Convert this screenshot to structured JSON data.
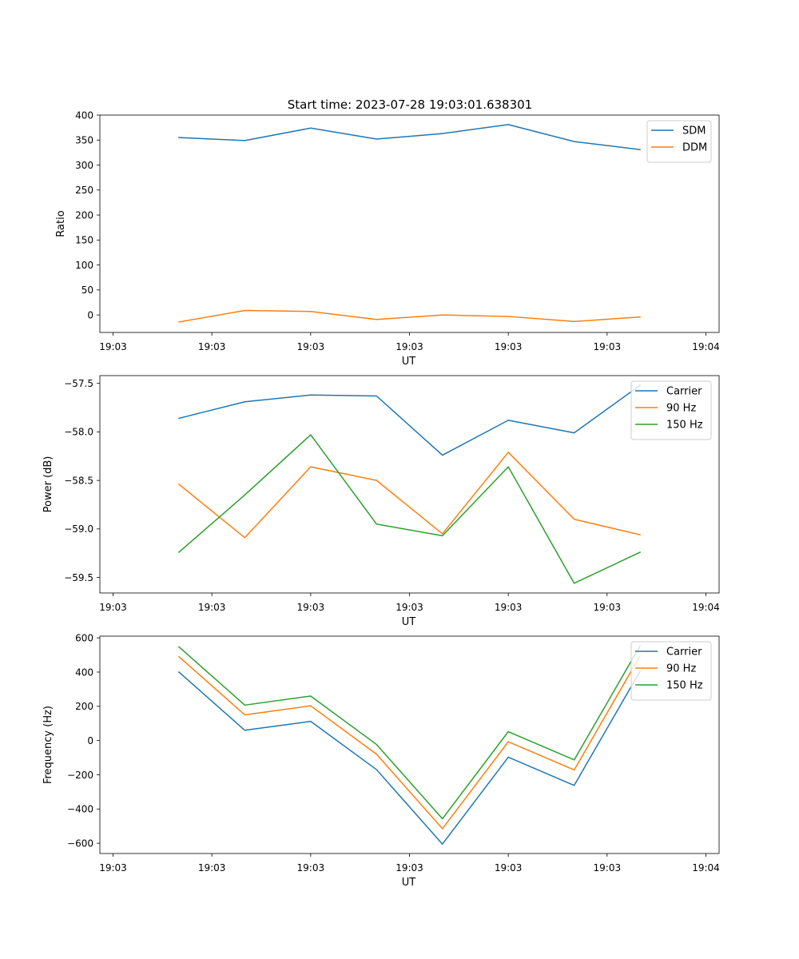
{
  "figure": {
    "title": "Start time: 2023-07-28 19:03:01.638301"
  },
  "colors": {
    "blue": "#1f77b4",
    "orange": "#ff7f0e",
    "green": "#2ca02c"
  },
  "chart_data": [
    {
      "type": "line",
      "title": "Start time: 2023-07-28 19:03:01.638301",
      "xlabel": "UT",
      "ylabel": "Ratio",
      "x": [
        1,
        2,
        3,
        4,
        5,
        6,
        7,
        8
      ],
      "xlim": [
        -0.2,
        9.2
      ],
      "xticks": [
        0,
        1.5,
        3,
        4.5,
        6,
        7.5,
        9
      ],
      "xtick_labels": [
        "19:03",
        "19:03",
        "19:03",
        "19:03",
        "19:03",
        "19:03",
        "19:04"
      ],
      "ylim": [
        -35,
        400
      ],
      "yticks": [
        0,
        50,
        100,
        150,
        200,
        250,
        300,
        350,
        400
      ],
      "ytick_labels": [
        "0",
        "50",
        "100",
        "150",
        "200",
        "250",
        "300",
        "350",
        "400"
      ],
      "legend": "top-right",
      "series": [
        {
          "name": "SDM",
          "color": "#1f77b4",
          "values": [
            355,
            349,
            374,
            352,
            363,
            381,
            347,
            331
          ]
        },
        {
          "name": "DDM",
          "color": "#ff7f0e",
          "values": [
            -14,
            9,
            7,
            -9,
            0,
            -3,
            -13,
            -4
          ]
        }
      ]
    },
    {
      "type": "line",
      "xlabel": "UT",
      "ylabel": "Power (dB)",
      "x": [
        1,
        2,
        3,
        4,
        5,
        6,
        7,
        8
      ],
      "xlim": [
        -0.2,
        9.2
      ],
      "xticks": [
        0,
        1.5,
        3,
        4.5,
        6,
        7.5,
        9
      ],
      "xtick_labels": [
        "19:03",
        "19:03",
        "19:03",
        "19:03",
        "19:03",
        "19:03",
        "19:04"
      ],
      "ylim": [
        -59.66,
        -57.42
      ],
      "yticks": [
        -59.5,
        -59.0,
        -58.5,
        -58.0,
        -57.5
      ],
      "ytick_labels": [
        "−59.5",
        "−59.0",
        "−58.5",
        "−58.0",
        "−57.5"
      ],
      "legend": "top-right",
      "series": [
        {
          "name": "Carrier",
          "color": "#1f77b4",
          "values": [
            -57.86,
            -57.69,
            -57.62,
            -57.63,
            -58.24,
            -57.88,
            -58.01,
            -57.52
          ]
        },
        {
          "name": "90 Hz",
          "color": "#ff7f0e",
          "values": [
            -58.54,
            -59.09,
            -58.36,
            -58.5,
            -59.05,
            -58.21,
            -58.9,
            -59.06
          ]
        },
        {
          "name": "150 Hz",
          "color": "#2ca02c",
          "values": [
            -59.24,
            -58.65,
            -58.03,
            -58.95,
            -59.07,
            -58.36,
            -59.56,
            -59.24
          ]
        }
      ]
    },
    {
      "type": "line",
      "xlabel": "UT",
      "ylabel": "Frequency (Hz)",
      "x": [
        1,
        2,
        3,
        4,
        5,
        6,
        7,
        8
      ],
      "xlim": [
        -0.2,
        9.2
      ],
      "xticks": [
        0,
        1.5,
        3,
        4.5,
        6,
        7.5,
        9
      ],
      "xtick_labels": [
        "19:03",
        "19:03",
        "19:03",
        "19:03",
        "19:03",
        "19:03",
        "19:04"
      ],
      "ylim": [
        -660,
        610
      ],
      "yticks": [
        -600,
        -400,
        -200,
        0,
        200,
        400,
        600
      ],
      "ytick_labels": [
        "−600",
        "−400",
        "−200",
        "0",
        "200",
        "400",
        "600"
      ],
      "legend": "top-right",
      "series": [
        {
          "name": "Carrier",
          "color": "#1f77b4",
          "values": [
            400,
            60,
            112,
            -170,
            -605,
            -97,
            -262,
            405
          ]
        },
        {
          "name": "90 Hz",
          "color": "#ff7f0e",
          "values": [
            490,
            150,
            203,
            -80,
            -515,
            -7,
            -172,
            495
          ]
        },
        {
          "name": "150 Hz",
          "color": "#2ca02c",
          "values": [
            547,
            207,
            260,
            -23,
            -457,
            52,
            -113,
            553
          ]
        }
      ]
    }
  ]
}
